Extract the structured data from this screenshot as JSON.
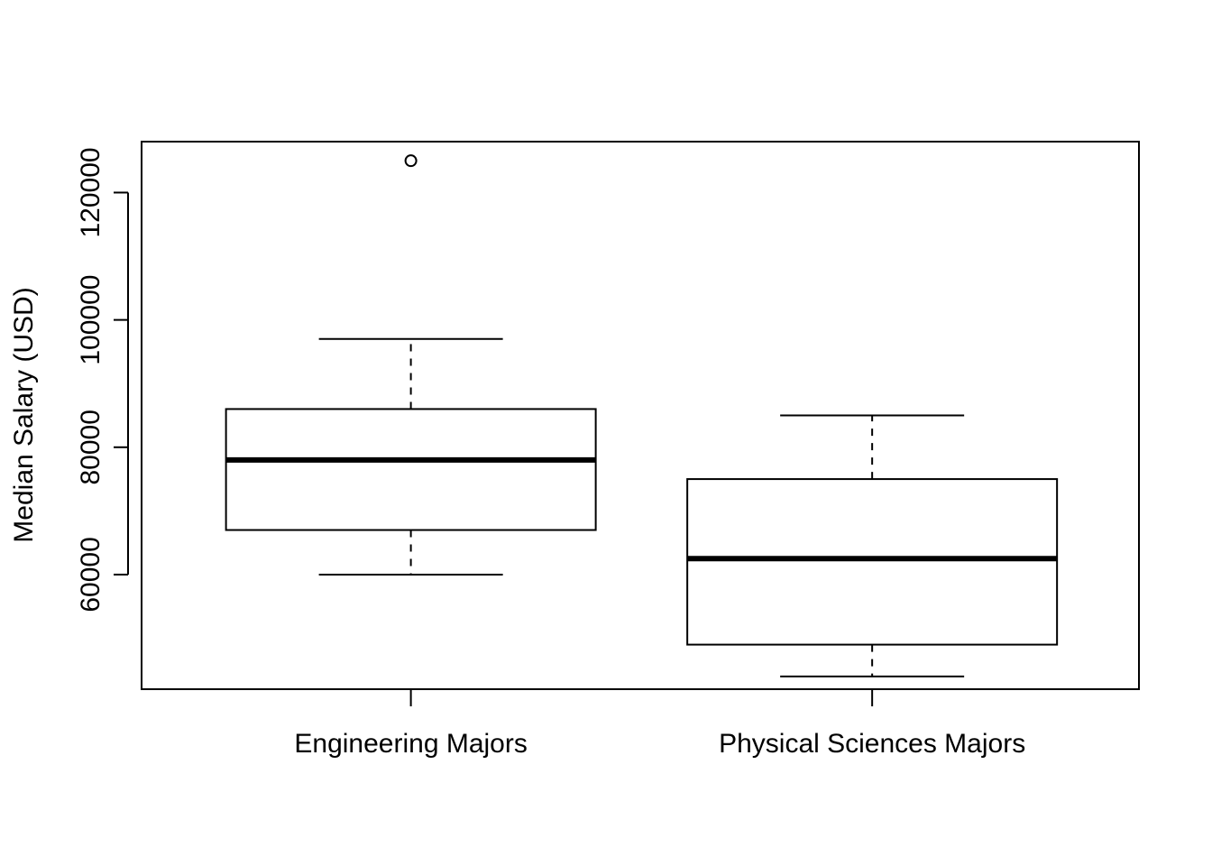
{
  "chart_data": {
    "type": "box",
    "categories": [
      "Engineering Majors",
      "Physical Sciences Majors"
    ],
    "boxes": [
      {
        "category": "Engineering Majors",
        "whisker_low": 60000,
        "q1": 67000,
        "median": 78000,
        "q3": 86000,
        "whisker_high": 97000,
        "outliers": [
          125000
        ]
      },
      {
        "category": "Physical Sciences Majors",
        "whisker_low": 44000,
        "q1": 49000,
        "median": 62500,
        "q3": 75000,
        "whisker_high": 85000,
        "outliers": []
      }
    ],
    "title": "",
    "xlabel": "",
    "ylabel": "Median Salary (USD)",
    "ylim": [
      42000,
      128000
    ],
    "yticks": [
      60000,
      80000,
      100000,
      120000
    ],
    "ytick_labels": [
      "60000",
      "80000",
      "100000",
      "120000"
    ],
    "grid": false
  }
}
